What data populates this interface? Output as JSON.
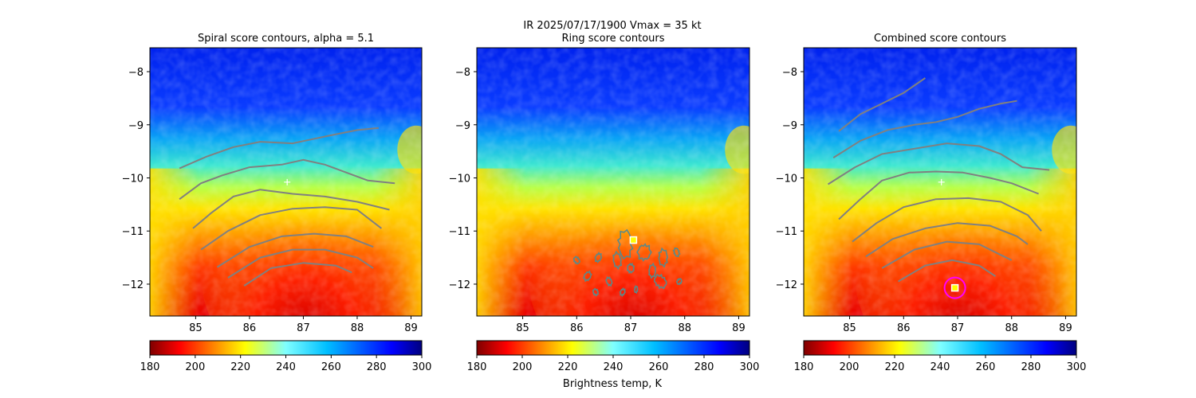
{
  "suptitle": "IR  2025/07/17/1900    Vmax = 35 kt",
  "colorbar_label": "Brightness temp, K",
  "colors": {
    "contour": "#808080",
    "ring_contour": "#5a8a8a",
    "cross": "#ffffff",
    "marker_fill": "#ffff00",
    "marker_edge": "#ffffff",
    "circle": "#ff00ff"
  },
  "chart_data": [
    {
      "type": "heatmap",
      "title": "Spiral score contours, alpha =  5.1",
      "xlim": [
        84.15,
        89.2
      ],
      "ylim": [
        -12.6,
        -7.55
      ],
      "xticks": [
        85,
        86,
        87,
        88,
        89
      ],
      "xtick_labels": [
        "85",
        "86",
        "87",
        "88",
        "89"
      ],
      "yticks": [
        -8,
        -9,
        -10,
        -11,
        -12
      ],
      "ytick_labels": [
        "−8",
        "−9",
        "−10",
        "−11",
        "−12"
      ],
      "colorscale": "jet_reversed",
      "clim": [
        180,
        300
      ],
      "colorbar_ticks": [
        "180",
        "200",
        "220",
        "240",
        "260",
        "280",
        "300"
      ],
      "center_cross": [
        86.7,
        -10.08
      ],
      "contours": [
        [
          [
            84.7,
            -9.82
          ],
          [
            85.2,
            -9.6
          ],
          [
            85.7,
            -9.42
          ],
          [
            86.2,
            -9.32
          ],
          [
            86.8,
            -9.35
          ],
          [
            87.5,
            -9.2
          ],
          [
            88.0,
            -9.1
          ],
          [
            88.4,
            -9.06
          ]
        ],
        [
          [
            84.7,
            -10.4
          ],
          [
            85.1,
            -10.1
          ],
          [
            85.5,
            -9.95
          ],
          [
            86.0,
            -9.8
          ],
          [
            86.6,
            -9.75
          ],
          [
            87.0,
            -9.66
          ],
          [
            87.4,
            -9.75
          ],
          [
            87.8,
            -9.9
          ],
          [
            88.2,
            -10.05
          ],
          [
            88.7,
            -10.1
          ]
        ],
        [
          [
            84.95,
            -10.95
          ],
          [
            85.3,
            -10.65
          ],
          [
            85.7,
            -10.35
          ],
          [
            86.2,
            -10.22
          ],
          [
            86.8,
            -10.3
          ],
          [
            87.4,
            -10.35
          ],
          [
            88.0,
            -10.45
          ],
          [
            88.6,
            -10.6
          ]
        ],
        [
          [
            85.1,
            -11.35
          ],
          [
            85.6,
            -11.0
          ],
          [
            86.2,
            -10.7
          ],
          [
            86.8,
            -10.58
          ],
          [
            87.4,
            -10.55
          ],
          [
            88.0,
            -10.6
          ],
          [
            88.45,
            -10.95
          ]
        ],
        [
          [
            85.4,
            -11.68
          ],
          [
            86.0,
            -11.3
          ],
          [
            86.6,
            -11.1
          ],
          [
            87.2,
            -11.05
          ],
          [
            87.8,
            -11.1
          ],
          [
            88.3,
            -11.3
          ]
        ],
        [
          [
            85.6,
            -11.88
          ],
          [
            86.2,
            -11.5
          ],
          [
            86.8,
            -11.35
          ],
          [
            87.4,
            -11.35
          ],
          [
            88.0,
            -11.5
          ],
          [
            88.3,
            -11.7
          ]
        ],
        [
          [
            85.9,
            -12.03
          ],
          [
            86.4,
            -11.7
          ],
          [
            87.0,
            -11.6
          ],
          [
            87.6,
            -11.65
          ],
          [
            87.9,
            -11.78
          ]
        ]
      ]
    },
    {
      "type": "heatmap",
      "title": "Ring score contours",
      "xlim": [
        84.15,
        89.2
      ],
      "ylim": [
        -12.6,
        -7.55
      ],
      "xticks": [
        85,
        86,
        87,
        88,
        89
      ],
      "xtick_labels": [
        "85",
        "86",
        "87",
        "88",
        "89"
      ],
      "yticks": [
        -8,
        -9,
        -10,
        -11,
        -12
      ],
      "ytick_labels": [
        "−8",
        "−9",
        "−10",
        "−11",
        "−12"
      ],
      "colorscale": "jet_reversed",
      "clim": [
        180,
        300
      ],
      "colorbar_ticks": [
        "180",
        "200",
        "220",
        "240",
        "260",
        "280",
        "300"
      ],
      "marker": [
        87.05,
        -11.17
      ]
    },
    {
      "type": "heatmap",
      "title": "Combined score contours",
      "xlim": [
        84.15,
        89.2
      ],
      "ylim": [
        -12.6,
        -7.55
      ],
      "xticks": [
        85,
        86,
        87,
        88,
        89
      ],
      "xtick_labels": [
        "85",
        "86",
        "87",
        "88",
        "89"
      ],
      "yticks": [
        -8,
        -9,
        -10,
        -11,
        -12
      ],
      "ytick_labels": [
        "−8",
        "−9",
        "−10",
        "−11",
        "−12"
      ],
      "colorscale": "jet_reversed",
      "clim": [
        180,
        300
      ],
      "colorbar_ticks": [
        "180",
        "200",
        "220",
        "240",
        "260",
        "280",
        "300"
      ],
      "center_cross": [
        86.7,
        -10.08
      ],
      "marker": [
        86.95,
        -12.07
      ],
      "circle_center": [
        86.95,
        -12.07
      ],
      "contours": [
        [
          [
            84.8,
            -9.12
          ],
          [
            85.2,
            -8.8
          ],
          [
            85.6,
            -8.6
          ],
          [
            86.0,
            -8.4
          ],
          [
            86.4,
            -8.12
          ]
        ],
        [
          [
            84.7,
            -9.62
          ],
          [
            85.2,
            -9.3
          ],
          [
            85.7,
            -9.1
          ],
          [
            86.2,
            -9.0
          ],
          [
            86.6,
            -8.95
          ],
          [
            87.0,
            -8.85
          ],
          [
            87.4,
            -8.7
          ],
          [
            87.8,
            -8.6
          ],
          [
            88.1,
            -8.55
          ]
        ],
        [
          [
            84.6,
            -10.12
          ],
          [
            85.1,
            -9.8
          ],
          [
            85.6,
            -9.55
          ],
          [
            86.2,
            -9.45
          ],
          [
            86.8,
            -9.35
          ],
          [
            87.4,
            -9.4
          ],
          [
            87.8,
            -9.55
          ],
          [
            88.2,
            -9.8
          ],
          [
            88.7,
            -9.85
          ]
        ],
        [
          [
            84.8,
            -10.78
          ],
          [
            85.2,
            -10.4
          ],
          [
            85.6,
            -10.05
          ],
          [
            86.1,
            -9.9
          ],
          [
            86.6,
            -9.88
          ],
          [
            87.1,
            -9.9
          ],
          [
            87.6,
            -10.0
          ],
          [
            88.0,
            -10.1
          ],
          [
            88.5,
            -10.3
          ]
        ],
        [
          [
            85.05,
            -11.2
          ],
          [
            85.5,
            -10.85
          ],
          [
            86.0,
            -10.55
          ],
          [
            86.6,
            -10.4
          ],
          [
            87.2,
            -10.38
          ],
          [
            87.8,
            -10.45
          ],
          [
            88.3,
            -10.7
          ],
          [
            88.55,
            -11.0
          ]
        ],
        [
          [
            85.3,
            -11.48
          ],
          [
            85.8,
            -11.15
          ],
          [
            86.4,
            -10.95
          ],
          [
            87.0,
            -10.85
          ],
          [
            87.6,
            -10.9
          ],
          [
            88.1,
            -11.1
          ],
          [
            88.3,
            -11.25
          ]
        ],
        [
          [
            85.6,
            -11.7
          ],
          [
            86.2,
            -11.35
          ],
          [
            86.8,
            -11.2
          ],
          [
            87.4,
            -11.25
          ],
          [
            87.8,
            -11.45
          ],
          [
            88.0,
            -11.55
          ]
        ],
        [
          [
            85.9,
            -11.95
          ],
          [
            86.4,
            -11.65
          ],
          [
            86.9,
            -11.55
          ],
          [
            87.4,
            -11.65
          ],
          [
            87.7,
            -11.85
          ]
        ]
      ]
    }
  ]
}
